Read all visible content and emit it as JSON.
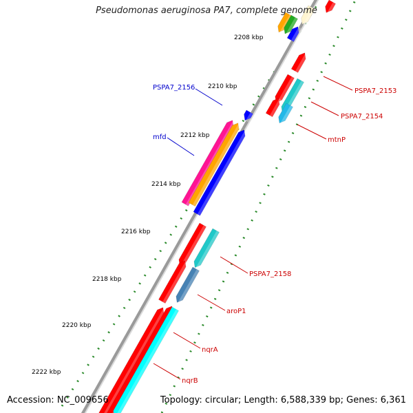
{
  "title": "Pseudomonas aeruginosa PA7, complete genome",
  "footer": {
    "accession": "Accession: NC_009656",
    "info": "Topology: circular; Length: 6,588,339 bp; Genes: 6,361"
  },
  "ticks": [
    "2208 kbp",
    "2210 kbp",
    "2212 kbp",
    "2214 kbp",
    "2216 kbp",
    "2218 kbp",
    "2220 kbp",
    "2222 kbp"
  ],
  "gene_labels": {
    "blue": [
      "PSPA7_2156",
      "mfd"
    ],
    "red": [
      "PSPA7_2153",
      "PSPA7_2154",
      "mtnP",
      "PSPA7_2158",
      "aroP1",
      "nqrA",
      "nqrB"
    ]
  },
  "colors": {
    "cds": "#ff0000",
    "blue": "#0000ff",
    "cyan": "#00ffff",
    "teal": "#20c8c8",
    "steel": "#4682b4",
    "magenta": "#ff1493",
    "orange": "#ffa500",
    "green": "#22aa22",
    "backbone": "#808080",
    "label_blue": "#0000cc",
    "label_red": "#cc0000"
  }
}
